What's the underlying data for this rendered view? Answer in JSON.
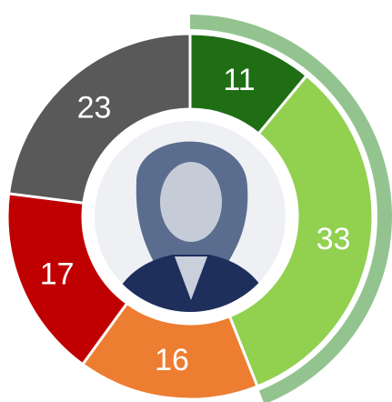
{
  "chart_data": {
    "type": "donut",
    "values": [
      11,
      33,
      16,
      17,
      23
    ],
    "colors": [
      "#1f6e14",
      "#92d050",
      "#ed7d31",
      "#c00000",
      "#595959"
    ],
    "group_color": "#93c48f"
  }
}
